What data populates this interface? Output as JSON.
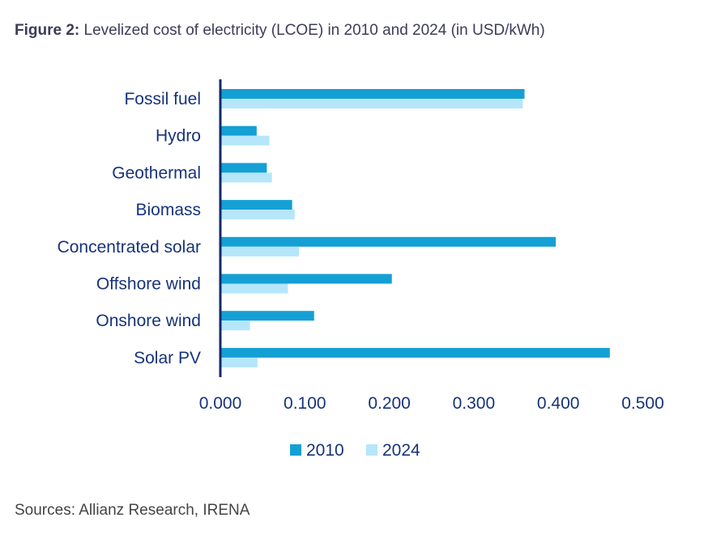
{
  "title_prefix": "Figure 2:",
  "title_text": " Levelized cost of electricity (LCOE) in 2010 and 2024 (in USD/kWh)",
  "source": "Sources: Allianz Research, IRENA",
  "chart_data": {
    "type": "bar",
    "orientation": "horizontal",
    "title": "Figure 2: Levelized cost of electricity (LCOE) in 2010 and 2024 (in USD/kWh)",
    "categories": [
      "Fossil fuel",
      "Hydro",
      "Geothermal",
      "Biomass",
      "Concentrated solar",
      "Offshore wind",
      "Onshore wind",
      "Solar PV"
    ],
    "series": [
      {
        "name": "2010",
        "color": "#14a0d4",
        "values": [
          0.36,
          0.043,
          0.055,
          0.085,
          0.397,
          0.203,
          0.111,
          0.461
        ]
      },
      {
        "name": "2024",
        "color": "#b5e6fa",
        "values": [
          0.358,
          0.058,
          0.061,
          0.088,
          0.093,
          0.08,
          0.035,
          0.044
        ]
      }
    ],
    "xlim": [
      0,
      0.5
    ],
    "xticks": [
      "0.000",
      "0.100",
      "0.200",
      "0.300",
      "0.400",
      "0.500"
    ],
    "grid": false,
    "legend": "bottom",
    "label_color": "#17337a",
    "axis_color": "#122b6b"
  }
}
